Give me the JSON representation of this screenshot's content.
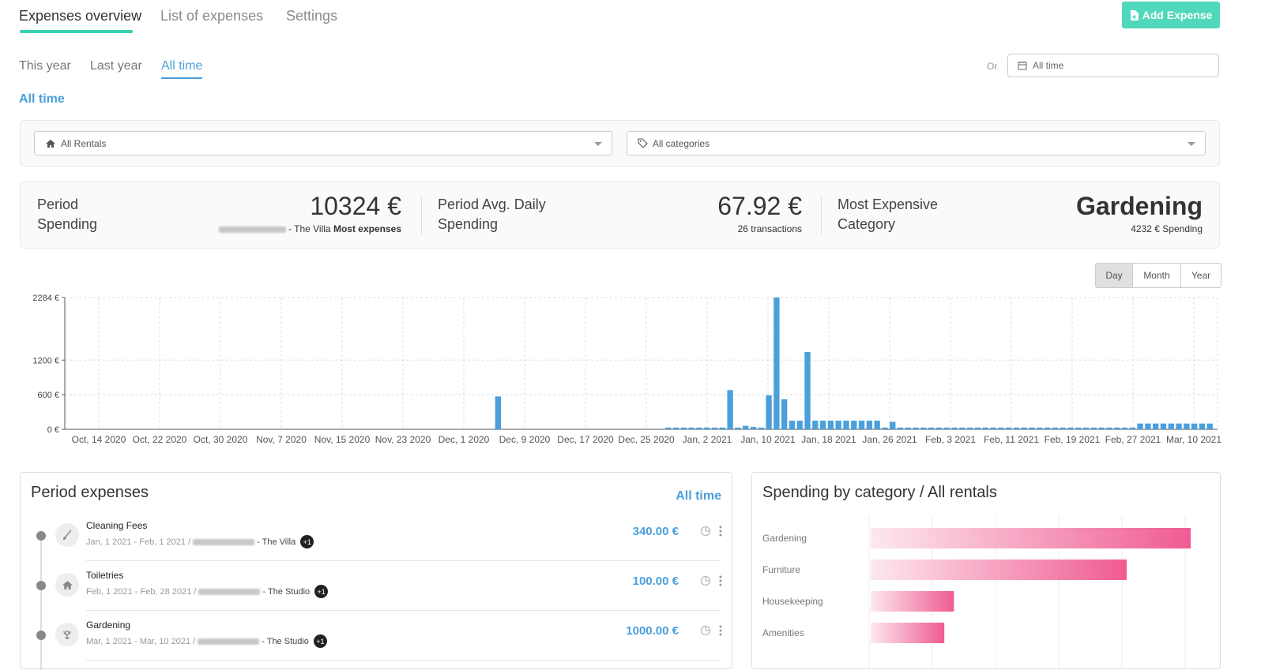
{
  "tabs": [
    {
      "label": "Expenses overview",
      "active": true
    },
    {
      "label": "List of expenses",
      "active": false
    },
    {
      "label": "Settings",
      "active": false
    }
  ],
  "add_button": {
    "label": "Add Expense",
    "icon": "file-plus-icon"
  },
  "period_tabs": [
    {
      "label": "This year",
      "active": false
    },
    {
      "label": "Last year",
      "active": false
    },
    {
      "label": "All time",
      "active": true
    }
  ],
  "or_label": "Or",
  "date_range": {
    "value": "All time",
    "icon": "calendar-icon"
  },
  "section_title": "All time",
  "filters": {
    "rentals": {
      "value": "All Rentals",
      "icon": "home-icon"
    },
    "categories": {
      "value": "All categories",
      "icon": "tag-icon"
    }
  },
  "stats": {
    "period_spending": {
      "label_line1": "Period",
      "label_line2": "Spending",
      "value": "10324 €",
      "sub_rental": "- The Villa",
      "sub_note": "Most expenses"
    },
    "avg_daily": {
      "label_line1": "Period Avg. Daily",
      "label_line2": "Spending",
      "value": "67.92 €",
      "sub": "26 transactions"
    },
    "most_expensive": {
      "label_line1": "Most Expensive",
      "label_line2": "Category",
      "value": "Gardening",
      "sub": "4232 € Spending"
    }
  },
  "granularity": [
    {
      "label": "Day",
      "active": true
    },
    {
      "label": "Month",
      "active": false
    },
    {
      "label": "Year",
      "active": false
    }
  ],
  "chart_data": {
    "type": "bar",
    "y_ticks": [
      "2284 €",
      "1200 €",
      "600 €",
      "0 €"
    ],
    "y_tick_values": [
      2284,
      1200,
      600,
      0
    ],
    "ylim": [
      0,
      2284
    ],
    "x_tick_labels": [
      "Oct, 14 2020",
      "Oct, 22 2020",
      "Oct, 30 2020",
      "Nov, 7 2020",
      "Nov, 15 2020",
      "Nov, 23 2020",
      "Dec, 1 2020",
      "Dec, 9 2020",
      "Dec, 17 2020",
      "Dec, 25 2020",
      "Jan, 2 2021",
      "Jan, 10 2021",
      "Jan, 18 2021",
      "Jan, 26 2021",
      "Feb, 3 2021",
      "Feb, 11 2021",
      "Feb, 19 2021",
      "Feb, 27 2021",
      "Mar, 10 2021"
    ],
    "x_start": "2020-10-13",
    "x_end": "2021-03-11",
    "bars": [
      {
        "date": "2020-12-08",
        "value": 570
      },
      {
        "date": "2020-12-30",
        "value": 30
      },
      {
        "date": "2020-12-31",
        "value": 30
      },
      {
        "date": "2021-01-01",
        "value": 30
      },
      {
        "date": "2021-01-02",
        "value": 30
      },
      {
        "date": "2021-01-03",
        "value": 30
      },
      {
        "date": "2021-01-04",
        "value": 30
      },
      {
        "date": "2021-01-05",
        "value": 30
      },
      {
        "date": "2021-01-06",
        "value": 30
      },
      {
        "date": "2021-01-07",
        "value": 680
      },
      {
        "date": "2021-01-08",
        "value": 30
      },
      {
        "date": "2021-01-09",
        "value": 60
      },
      {
        "date": "2021-01-10",
        "value": 40
      },
      {
        "date": "2021-01-11",
        "value": 30
      },
      {
        "date": "2021-01-12",
        "value": 590
      },
      {
        "date": "2021-01-13",
        "value": 2284
      },
      {
        "date": "2021-01-14",
        "value": 520
      },
      {
        "date": "2021-01-15",
        "value": 150
      },
      {
        "date": "2021-01-16",
        "value": 150
      },
      {
        "date": "2021-01-17",
        "value": 1340
      },
      {
        "date": "2021-01-18",
        "value": 150
      },
      {
        "date": "2021-01-19",
        "value": 150
      },
      {
        "date": "2021-01-20",
        "value": 150
      },
      {
        "date": "2021-01-21",
        "value": 150
      },
      {
        "date": "2021-01-22",
        "value": 150
      },
      {
        "date": "2021-01-23",
        "value": 150
      },
      {
        "date": "2021-01-24",
        "value": 150
      },
      {
        "date": "2021-01-25",
        "value": 150
      },
      {
        "date": "2021-01-26",
        "value": 150
      },
      {
        "date": "2021-01-27",
        "value": 30
      },
      {
        "date": "2021-01-28",
        "value": 130
      },
      {
        "date": "2021-01-29",
        "value": 30
      },
      {
        "date": "2021-01-30",
        "value": 30
      },
      {
        "date": "2021-01-31",
        "value": 30
      },
      {
        "date": "2021-02-01",
        "value": 30
      },
      {
        "date": "2021-02-02",
        "value": 30
      },
      {
        "date": "2021-02-03",
        "value": 30
      },
      {
        "date": "2021-02-04",
        "value": 30
      },
      {
        "date": "2021-02-05",
        "value": 30
      },
      {
        "date": "2021-02-06",
        "value": 30
      },
      {
        "date": "2021-02-07",
        "value": 30
      },
      {
        "date": "2021-02-08",
        "value": 30
      },
      {
        "date": "2021-02-09",
        "value": 30
      },
      {
        "date": "2021-02-10",
        "value": 30
      },
      {
        "date": "2021-02-11",
        "value": 30
      },
      {
        "date": "2021-02-12",
        "value": 30
      },
      {
        "date": "2021-02-13",
        "value": 30
      },
      {
        "date": "2021-02-14",
        "value": 30
      },
      {
        "date": "2021-02-15",
        "value": 30
      },
      {
        "date": "2021-02-16",
        "value": 30
      },
      {
        "date": "2021-02-17",
        "value": 30
      },
      {
        "date": "2021-02-18",
        "value": 30
      },
      {
        "date": "2021-02-19",
        "value": 30
      },
      {
        "date": "2021-02-20",
        "value": 30
      },
      {
        "date": "2021-02-21",
        "value": 30
      },
      {
        "date": "2021-02-22",
        "value": 30
      },
      {
        "date": "2021-02-23",
        "value": 30
      },
      {
        "date": "2021-02-24",
        "value": 30
      },
      {
        "date": "2021-02-25",
        "value": 30
      },
      {
        "date": "2021-02-26",
        "value": 30
      },
      {
        "date": "2021-02-27",
        "value": 30
      },
      {
        "date": "2021-02-28",
        "value": 30
      },
      {
        "date": "2021-03-01",
        "value": 100
      },
      {
        "date": "2021-03-02",
        "value": 100
      },
      {
        "date": "2021-03-03",
        "value": 100
      },
      {
        "date": "2021-03-04",
        "value": 100
      },
      {
        "date": "2021-03-05",
        "value": 100
      },
      {
        "date": "2021-03-06",
        "value": 100
      },
      {
        "date": "2021-03-07",
        "value": 100
      },
      {
        "date": "2021-03-08",
        "value": 100
      },
      {
        "date": "2021-03-09",
        "value": 100
      },
      {
        "date": "2021-03-10",
        "value": 100
      }
    ],
    "bar_color": "#4a9fdc",
    "grid": true
  },
  "period_expenses": {
    "title": "Period expenses",
    "link": "All time",
    "items": [
      {
        "name": "Cleaning Fees",
        "dates": "Jan, 1 2021 - Feb, 1 2021 /",
        "rental": "- The Villa",
        "badge": "+1",
        "amount": "340.00 €",
        "icon": "brush-icon"
      },
      {
        "name": "Toiletries",
        "dates": "Feb, 1 2021 - Feb, 28 2021 /",
        "rental": "- The Studio",
        "badge": "+1",
        "amount": "100.00 €",
        "icon": "home-icon"
      },
      {
        "name": "Gardening",
        "dates": "Mar, 1 2021 - Mar, 10 2021 /",
        "rental": "- The Studio",
        "badge": "+1",
        "amount": "1000.00 €",
        "icon": "flower-icon"
      }
    ]
  },
  "category_chart": {
    "title": "Spending by category / All rentals",
    "categories": [
      "Gardening",
      "Furniture",
      "Housekeeping",
      "Amenities"
    ],
    "relative_values": [
      1.0,
      0.8,
      0.26,
      0.23
    ],
    "color": "#ef5b92"
  }
}
